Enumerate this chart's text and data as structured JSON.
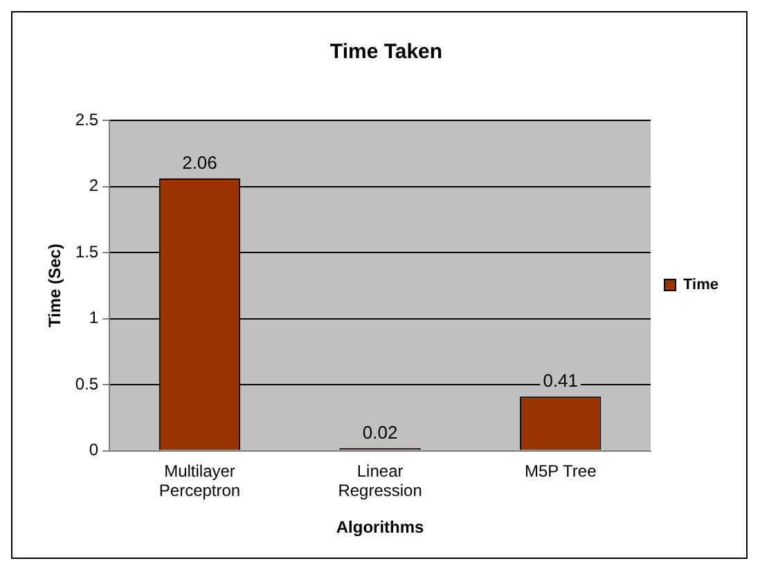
{
  "chart_data": {
    "type": "bar",
    "title": "Time Taken",
    "xlabel": "Algorithms",
    "ylabel": "Time (Sec)",
    "categories": [
      "Multilayer Perceptron",
      "Linear Regression",
      "M5P Tree"
    ],
    "series": [
      {
        "name": "Time",
        "color": "#993300",
        "values": [
          2.06,
          0.02,
          0.41
        ]
      }
    ],
    "ylim": [
      0,
      2.5
    ],
    "yticks": [
      0,
      0.5,
      1,
      1.5,
      2,
      2.5
    ],
    "grid": "y",
    "legend": "right",
    "data_labels": true
  }
}
